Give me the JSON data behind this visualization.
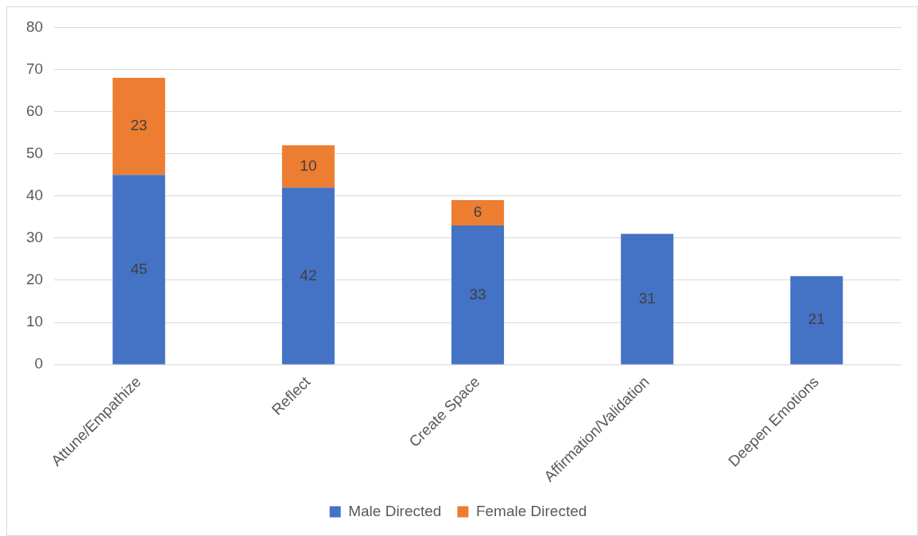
{
  "chart_data": {
    "type": "bar",
    "stacked": true,
    "categories": [
      "Attune/Empathize",
      "Reflect",
      "Create Space",
      "Affirmation/Validation",
      "Deepen Emotions"
    ],
    "series": [
      {
        "name": "Male Directed",
        "color": "#4472c4",
        "values": [
          45,
          42,
          33,
          31,
          21
        ]
      },
      {
        "name": "Female Directed",
        "color": "#ed7d31",
        "values": [
          23,
          10,
          6,
          null,
          null
        ]
      }
    ],
    "ylim": [
      0,
      80
    ],
    "yticks": [
      0,
      10,
      20,
      30,
      40,
      50,
      60,
      70,
      80
    ],
    "grid": "y",
    "legend": "bottom",
    "data_labels": true
  }
}
